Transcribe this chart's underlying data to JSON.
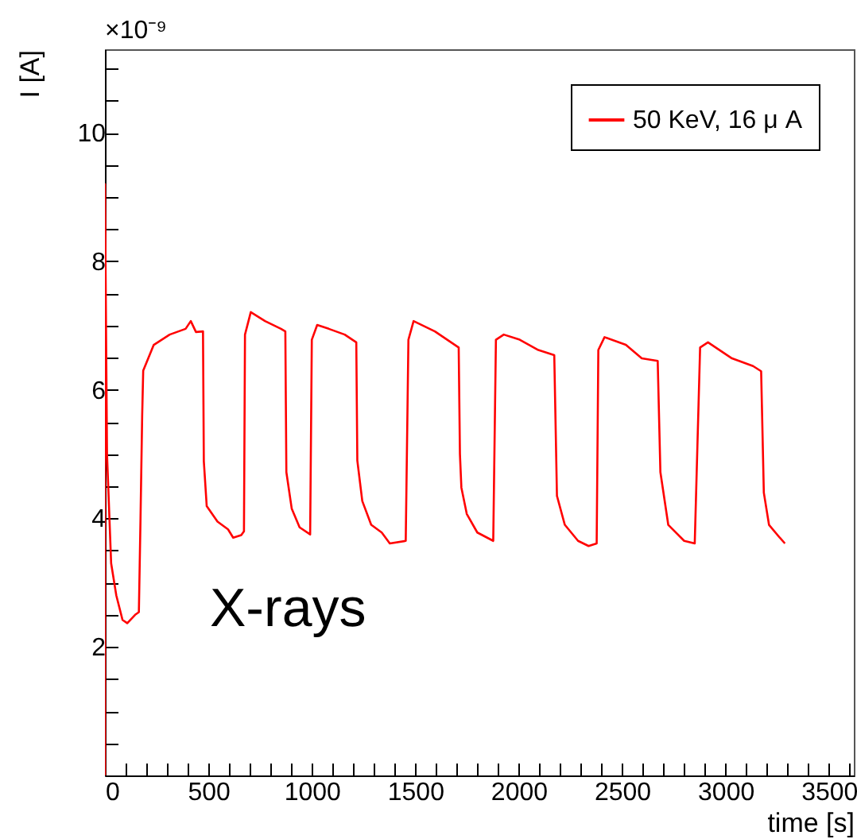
{
  "chart_data": {
    "type": "line",
    "xlabel": "time [s]",
    "ylabel": "I [A]",
    "annotations": [
      "×10⁻⁹",
      "X-rays"
    ],
    "xlim": [
      0,
      3620
    ],
    "ylim": [
      0,
      11.3
    ],
    "xticks": [
      0,
      {
        "value": 100,
        "label": null
      },
      {
        "value": 200,
        "label": null
      },
      {
        "value": 300,
        "label": null
      },
      {
        "value": 400,
        "label": null
      },
      500,
      {
        "value": 600,
        "label": null
      },
      {
        "value": 700,
        "label": null
      },
      {
        "value": 800,
        "label": null
      },
      {
        "value": 900,
        "label": null
      },
      1000,
      {
        "value": 1100,
        "label": null
      },
      {
        "value": 1200,
        "label": null
      },
      {
        "value": 1300,
        "label": null
      },
      {
        "value": 1400,
        "label": null
      },
      1500,
      {
        "value": 1600,
        "label": null
      },
      {
        "value": 1700,
        "label": null
      },
      {
        "value": 1800,
        "label": null
      },
      {
        "value": 1900,
        "label": null
      },
      2000,
      {
        "value": 2100,
        "label": null
      },
      {
        "value": 2200,
        "label": null
      },
      {
        "value": 2300,
        "label": null
      },
      {
        "value": 2400,
        "label": null
      },
      2500,
      {
        "value": 2600,
        "label": null
      },
      {
        "value": 2700,
        "label": null
      },
      {
        "value": 2800,
        "label": null
      },
      {
        "value": 2900,
        "label": null
      },
      3000,
      {
        "value": 3100,
        "label": null
      },
      {
        "value": 3200,
        "label": null
      },
      {
        "value": 3300,
        "label": null
      },
      {
        "value": 3400,
        "label": null
      },
      3500,
      {
        "value": 3600,
        "label": null
      }
    ],
    "yticks": [
      {
        "value": 0.5,
        "label": null
      },
      {
        "value": 1,
        "label": null
      },
      {
        "value": 1.5,
        "label": null
      },
      2,
      {
        "value": 2.5,
        "label": null
      },
      {
        "value": 3,
        "label": null
      },
      {
        "value": 3.5,
        "label": null
      },
      4,
      {
        "value": 4.5,
        "label": null
      },
      {
        "value": 5,
        "label": null
      },
      {
        "value": 5.5,
        "label": null
      },
      6,
      {
        "value": 6.5,
        "label": null
      },
      {
        "value": 7,
        "label": null
      },
      {
        "value": 7.5,
        "label": null
      },
      8,
      {
        "value": 8.5,
        "label": null
      },
      {
        "value": 9,
        "label": null
      },
      {
        "value": 9.5,
        "label": null
      },
      10,
      {
        "value": 10.5,
        "label": null
      },
      {
        "value": 11,
        "label": null
      }
    ],
    "grid": false,
    "legend": "top right",
    "marker": "none",
    "line_style": "solid",
    "series": [
      {
        "name": "50 KeV, 16 μ A",
        "color": "#ff0000",
        "x": [
          0,
          0,
          10,
          30,
          55,
          85,
          108,
          146,
          164,
          172,
          180,
          185,
          236,
          313,
          390,
          415,
          440,
          474,
          478,
          492,
          544,
          595,
          620,
          659,
          672,
          677,
          705,
          774,
          851,
          872,
          877,
          903,
          941,
          992,
          1000,
          1026,
          1082,
          1159,
          1215,
          1220,
          1244,
          1287,
          1338,
          1377,
          1454,
          1467,
          1492,
          1595,
          1710,
          1716,
          1723,
          1749,
          1800,
          1877,
          1890,
          1928,
          2005,
          2095,
          2172,
          2185,
          2223,
          2287,
          2338,
          2377,
          2385,
          2415,
          2518,
          2595,
          2672,
          2685,
          2723,
          2800,
          2851,
          2877,
          2915,
          3031,
          3133,
          3172,
          3185,
          3210,
          3262,
          3287
        ],
        "values": [
          0,
          9.2,
          5.0,
          3.3,
          2.8,
          2.42,
          2.37,
          2.5,
          2.54,
          4.0,
          5.6,
          6.3,
          6.7,
          6.86,
          6.95,
          7.07,
          6.9,
          6.91,
          4.89,
          4.19,
          3.95,
          3.83,
          3.7,
          3.74,
          3.8,
          6.86,
          7.21,
          7.07,
          6.95,
          6.91,
          4.72,
          4.15,
          3.86,
          3.75,
          6.78,
          7.01,
          6.95,
          6.86,
          6.74,
          4.9,
          4.27,
          3.9,
          3.78,
          3.61,
          3.65,
          6.78,
          7.07,
          6.91,
          6.66,
          5.0,
          4.48,
          4.07,
          3.78,
          3.65,
          6.78,
          6.86,
          6.78,
          6.62,
          6.54,
          4.35,
          3.9,
          3.65,
          3.57,
          3.61,
          6.62,
          6.82,
          6.7,
          6.49,
          6.45,
          4.72,
          3.9,
          3.65,
          3.61,
          6.66,
          6.74,
          6.49,
          6.37,
          6.29,
          4.4,
          3.9,
          3.7,
          3.61
        ]
      }
    ]
  }
}
